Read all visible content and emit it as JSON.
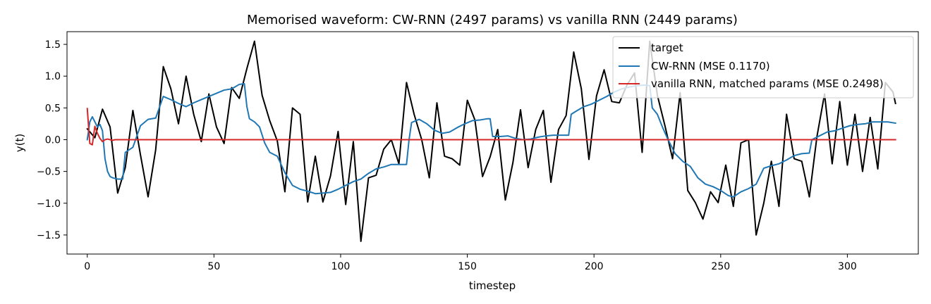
{
  "chart_data": {
    "type": "line",
    "title": "Memorised waveform: CW-RNN (2497 params) vs vanilla RNN (2449 params)",
    "xlabel": "timestep",
    "ylabel": "y(t)",
    "xlim": [
      -8,
      328
    ],
    "ylim": [
      -1.8,
      1.7
    ],
    "xticks": [
      0,
      50,
      100,
      150,
      200,
      250,
      300
    ],
    "yticks": [
      -1.5,
      -1.0,
      -0.5,
      0.0,
      0.5,
      1.0,
      1.5
    ],
    "grid": false,
    "legend_position": "top-right",
    "n_points": 320,
    "series": [
      {
        "name": "target",
        "color": "#000000",
        "x": [
          0,
          3,
          6,
          9,
          12,
          15,
          18,
          21,
          24,
          27,
          30,
          33,
          36,
          39,
          42,
          45,
          48,
          51,
          54,
          57,
          60,
          63,
          66,
          69,
          72,
          75,
          78,
          81,
          84,
          87,
          90,
          93,
          96,
          99,
          102,
          105,
          108,
          111,
          114,
          117,
          120,
          123,
          126,
          129,
          132,
          135,
          138,
          141,
          144,
          147,
          150,
          153,
          156,
          159,
          162,
          165,
          168,
          171,
          174,
          177,
          180,
          183,
          186,
          189,
          192,
          195,
          198,
          201,
          204,
          207,
          210,
          213,
          216,
          219,
          222,
          225,
          228,
          231,
          234,
          237,
          240,
          243,
          246,
          249,
          252,
          255,
          258,
          261,
          264,
          267,
          270,
          273,
          276,
          279,
          282,
          285,
          288,
          291,
          294,
          297,
          300,
          303,
          306,
          309,
          312,
          315,
          318,
          319
        ],
        "y": [
          0.17,
          0.03,
          0.48,
          0.2,
          -0.84,
          -0.44,
          0.46,
          -0.24,
          -0.9,
          -0.16,
          1.15,
          0.8,
          0.25,
          1.0,
          0.4,
          -0.03,
          0.72,
          0.2,
          -0.06,
          0.82,
          0.65,
          1.12,
          1.55,
          0.7,
          0.3,
          -0.02,
          -0.82,
          0.5,
          0.4,
          -0.98,
          -0.26,
          -0.98,
          -0.57,
          0.13,
          -1.02,
          -0.03,
          -1.6,
          -0.6,
          -0.56,
          -0.15,
          0.0,
          -0.38,
          0.9,
          0.4,
          0.0,
          -0.6,
          0.58,
          -0.26,
          -0.3,
          -0.4,
          0.62,
          0.31,
          -0.58,
          -0.27,
          0.16,
          -0.95,
          -0.36,
          0.47,
          -0.44,
          0.16,
          0.46,
          -0.67,
          0.16,
          0.38,
          1.38,
          0.8,
          -0.31,
          0.69,
          1.1,
          0.6,
          0.58,
          0.86,
          1.05,
          -0.2,
          1.55,
          0.7,
          0.22,
          -0.3,
          0.74,
          -0.8,
          -0.99,
          -1.25,
          -0.82,
          -0.99,
          -0.4,
          -1.05,
          -0.05,
          0.0,
          -1.5,
          -1.0,
          -0.34,
          -1.05,
          0.4,
          -0.3,
          -0.34,
          -0.9,
          0.05,
          0.72,
          -0.38,
          0.6,
          -0.4,
          0.4,
          -0.5,
          0.35,
          -0.46,
          0.9,
          0.75,
          0.57
        ]
      },
      {
        "name": "CW-RNN (MSE 0.1170)",
        "color": "#1f77b4",
        "x": [
          0,
          1,
          2,
          3,
          4,
          5,
          6,
          7,
          8,
          9,
          10,
          12,
          14,
          15,
          18,
          21,
          24,
          27,
          30,
          33,
          36,
          39,
          42,
          45,
          48,
          51,
          54,
          57,
          60,
          62,
          63,
          64,
          66,
          68,
          70,
          72,
          75,
          78,
          81,
          84,
          87,
          90,
          93,
          96,
          99,
          102,
          105,
          108,
          111,
          114,
          117,
          120,
          123,
          126,
          127,
          128,
          131,
          134,
          137,
          140,
          143,
          146,
          149,
          152,
          155,
          158,
          159,
          160,
          163,
          166,
          169,
          172,
          175,
          178,
          181,
          184,
          187,
          190,
          191,
          193,
          196,
          199,
          202,
          205,
          208,
          211,
          214,
          217,
          220,
          222,
          223,
          225,
          227,
          229,
          232,
          235,
          238,
          241,
          244,
          247,
          250,
          253,
          255,
          258,
          261,
          264,
          267,
          270,
          273,
          276,
          279,
          282,
          285,
          286,
          289,
          292,
          295,
          298,
          301,
          304,
          307,
          310,
          313,
          316,
          319
        ],
        "y": [
          0.0,
          0.28,
          0.36,
          0.28,
          0.2,
          0.24,
          0.14,
          -0.3,
          -0.5,
          -0.58,
          -0.6,
          -0.62,
          -0.62,
          -0.2,
          -0.12,
          0.22,
          0.32,
          0.34,
          0.68,
          0.63,
          0.57,
          0.52,
          0.58,
          0.63,
          0.68,
          0.73,
          0.78,
          0.8,
          0.87,
          0.88,
          0.52,
          0.33,
          0.28,
          0.2,
          -0.05,
          -0.2,
          -0.26,
          -0.52,
          -0.72,
          -0.78,
          -0.81,
          -0.85,
          -0.84,
          -0.83,
          -0.78,
          -0.72,
          -0.66,
          -0.62,
          -0.53,
          -0.46,
          -0.43,
          -0.39,
          -0.39,
          -0.39,
          0.0,
          0.27,
          0.32,
          0.25,
          0.15,
          0.1,
          0.12,
          0.19,
          0.25,
          0.3,
          0.31,
          0.33,
          0.33,
          0.05,
          0.05,
          0.06,
          0.02,
          0.0,
          0.01,
          0.04,
          0.06,
          0.07,
          0.07,
          0.07,
          0.4,
          0.45,
          0.52,
          0.56,
          0.62,
          0.68,
          0.75,
          0.8,
          0.83,
          0.85,
          0.86,
          0.85,
          0.5,
          0.4,
          0.2,
          0.02,
          -0.22,
          -0.34,
          -0.42,
          -0.6,
          -0.7,
          -0.74,
          -0.8,
          -0.88,
          -0.9,
          -0.82,
          -0.77,
          -0.7,
          -0.45,
          -0.41,
          -0.38,
          -0.32,
          -0.25,
          -0.22,
          -0.21,
          0.0,
          0.06,
          0.12,
          0.14,
          0.18,
          0.22,
          0.24,
          0.25,
          0.28,
          0.28,
          0.28,
          0.26
        ]
      },
      {
        "name": "vanilla RNN, matched params (MSE 0.2498)",
        "color": "#d62728",
        "x": [
          0,
          1,
          2,
          3,
          4,
          5,
          6,
          7,
          8,
          9,
          10,
          11,
          12,
          15,
          20,
          40,
          80,
          120,
          160,
          200,
          240,
          280,
          319
        ],
        "y": [
          0.49,
          -0.06,
          -0.08,
          0.21,
          0.1,
          0.02,
          -0.03,
          0.0,
          0.01,
          0.0,
          -0.01,
          0.0,
          0.0,
          0.0,
          0.0,
          0.0,
          0.0,
          0.0,
          0.0,
          0.0,
          0.0,
          0.0,
          0.0
        ]
      }
    ]
  }
}
